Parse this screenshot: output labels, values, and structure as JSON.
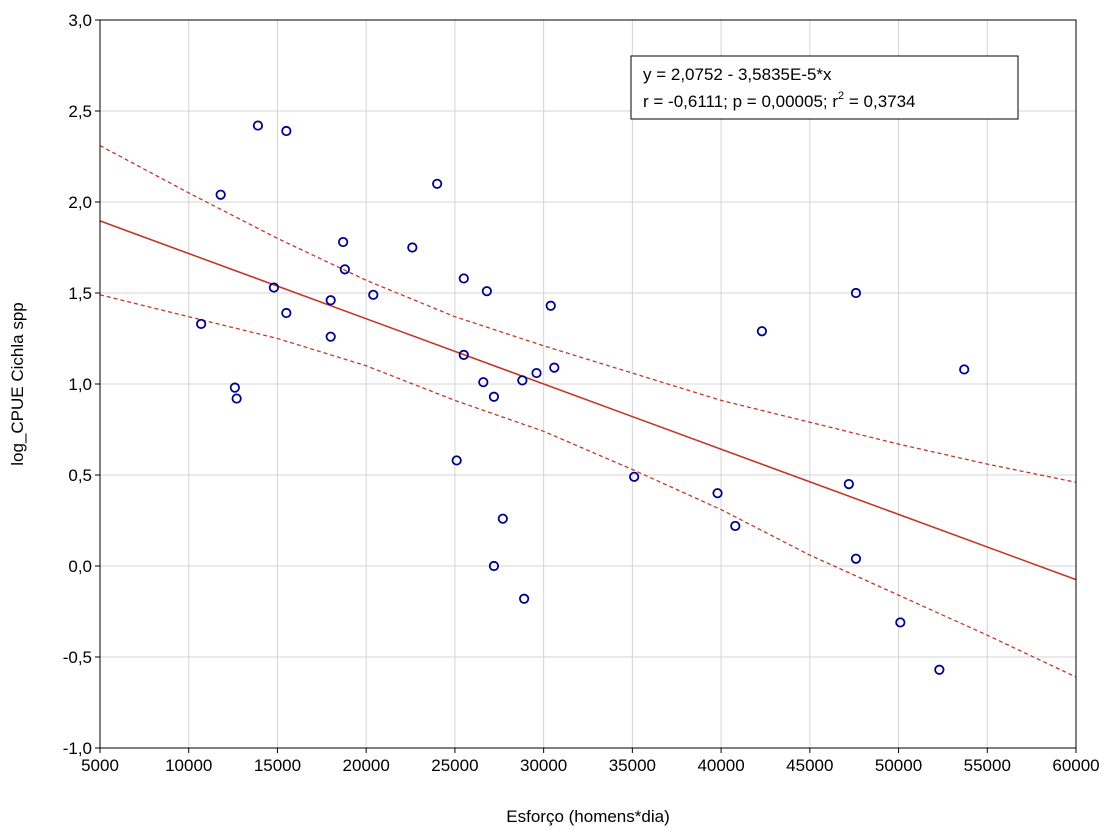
{
  "chart_data": {
    "type": "scatter",
    "title": "",
    "xlabel": "Esforço (homens*dia)",
    "ylabel": "log_CPUE Cichla spp",
    "xlim": [
      5000,
      60000
    ],
    "ylim": [
      -1.0,
      3.0
    ],
    "grid": true,
    "x_ticks": [
      5000,
      10000,
      15000,
      20000,
      25000,
      30000,
      35000,
      40000,
      45000,
      50000,
      55000,
      60000
    ],
    "x_tick_labels": [
      "5000",
      "10000",
      "15000",
      "20000",
      "25000",
      "30000",
      "35000",
      "40000",
      "45000",
      "50000",
      "55000",
      "60000"
    ],
    "y_ticks": [
      -1.0,
      -0.5,
      0.0,
      0.5,
      1.0,
      1.5,
      2.0,
      2.5,
      3.0
    ],
    "y_tick_labels": [
      "-1,0",
      "-0,5",
      "0,0",
      "0,5",
      "1,0",
      "1,5",
      "2,0",
      "2,5",
      "3,0"
    ],
    "points": [
      {
        "x": 10700,
        "y": 1.33
      },
      {
        "x": 11800,
        "y": 2.04
      },
      {
        "x": 12600,
        "y": 0.98
      },
      {
        "x": 12700,
        "y": 0.92
      },
      {
        "x": 13900,
        "y": 2.42
      },
      {
        "x": 14800,
        "y": 1.53
      },
      {
        "x": 15500,
        "y": 2.39
      },
      {
        "x": 15500,
        "y": 1.39
      },
      {
        "x": 18000,
        "y": 1.46
      },
      {
        "x": 18000,
        "y": 1.26
      },
      {
        "x": 18700,
        "y": 1.78
      },
      {
        "x": 18800,
        "y": 1.63
      },
      {
        "x": 20400,
        "y": 1.49
      },
      {
        "x": 22600,
        "y": 1.75
      },
      {
        "x": 24000,
        "y": 2.1
      },
      {
        "x": 25100,
        "y": 0.58
      },
      {
        "x": 25500,
        "y": 1.58
      },
      {
        "x": 25500,
        "y": 1.16
      },
      {
        "x": 26600,
        "y": 1.01
      },
      {
        "x": 26800,
        "y": 1.51
      },
      {
        "x": 27200,
        "y": 0.93
      },
      {
        "x": 27200,
        "y": 0.0
      },
      {
        "x": 27700,
        "y": 0.26
      },
      {
        "x": 28800,
        "y": 1.02
      },
      {
        "x": 28900,
        "y": -0.18
      },
      {
        "x": 29600,
        "y": 1.06
      },
      {
        "x": 30400,
        "y": 1.43
      },
      {
        "x": 30600,
        "y": 1.09
      },
      {
        "x": 35100,
        "y": 0.49
      },
      {
        "x": 39800,
        "y": 0.4
      },
      {
        "x": 40800,
        "y": 0.22
      },
      {
        "x": 42300,
        "y": 1.29
      },
      {
        "x": 47200,
        "y": 0.45
      },
      {
        "x": 47600,
        "y": 1.5
      },
      {
        "x": 47600,
        "y": 0.04
      },
      {
        "x": 50100,
        "y": -0.31
      },
      {
        "x": 52300,
        "y": -0.57
      },
      {
        "x": 53700,
        "y": 1.08
      }
    ],
    "regression": {
      "intercept": 2.0752,
      "slope": -3.5835e-05
    },
    "confidence_band": {
      "upper": [
        [
          5000,
          2.31
        ],
        [
          10000,
          2.05
        ],
        [
          15000,
          1.8
        ],
        [
          20000,
          1.57
        ],
        [
          25000,
          1.37
        ],
        [
          30000,
          1.21
        ],
        [
          35000,
          1.06
        ],
        [
          40000,
          0.91
        ],
        [
          45000,
          0.79
        ],
        [
          50000,
          0.67
        ],
        [
          55000,
          0.56
        ],
        [
          60000,
          0.46
        ]
      ],
      "lower": [
        [
          5000,
          1.49
        ],
        [
          10000,
          1.37
        ],
        [
          15000,
          1.25
        ],
        [
          20000,
          1.1
        ],
        [
          25000,
          0.91
        ],
        [
          30000,
          0.74
        ],
        [
          35000,
          0.53
        ],
        [
          40000,
          0.31
        ],
        [
          45000,
          0.06
        ],
        [
          50000,
          -0.16
        ],
        [
          55000,
          -0.38
        ],
        [
          60000,
          -0.61
        ]
      ]
    },
    "annotation": {
      "line1": "y = 2,0752 - 3,5835E-5*x",
      "line2_prefix": "r = -0,6111; p = 0,00005; r",
      "line2_sup": "2",
      "line2_suffix": " = 0,3734"
    },
    "colors": {
      "points": "#00008b",
      "regression": "#c0392b",
      "grid": "#d4d4d4"
    }
  }
}
